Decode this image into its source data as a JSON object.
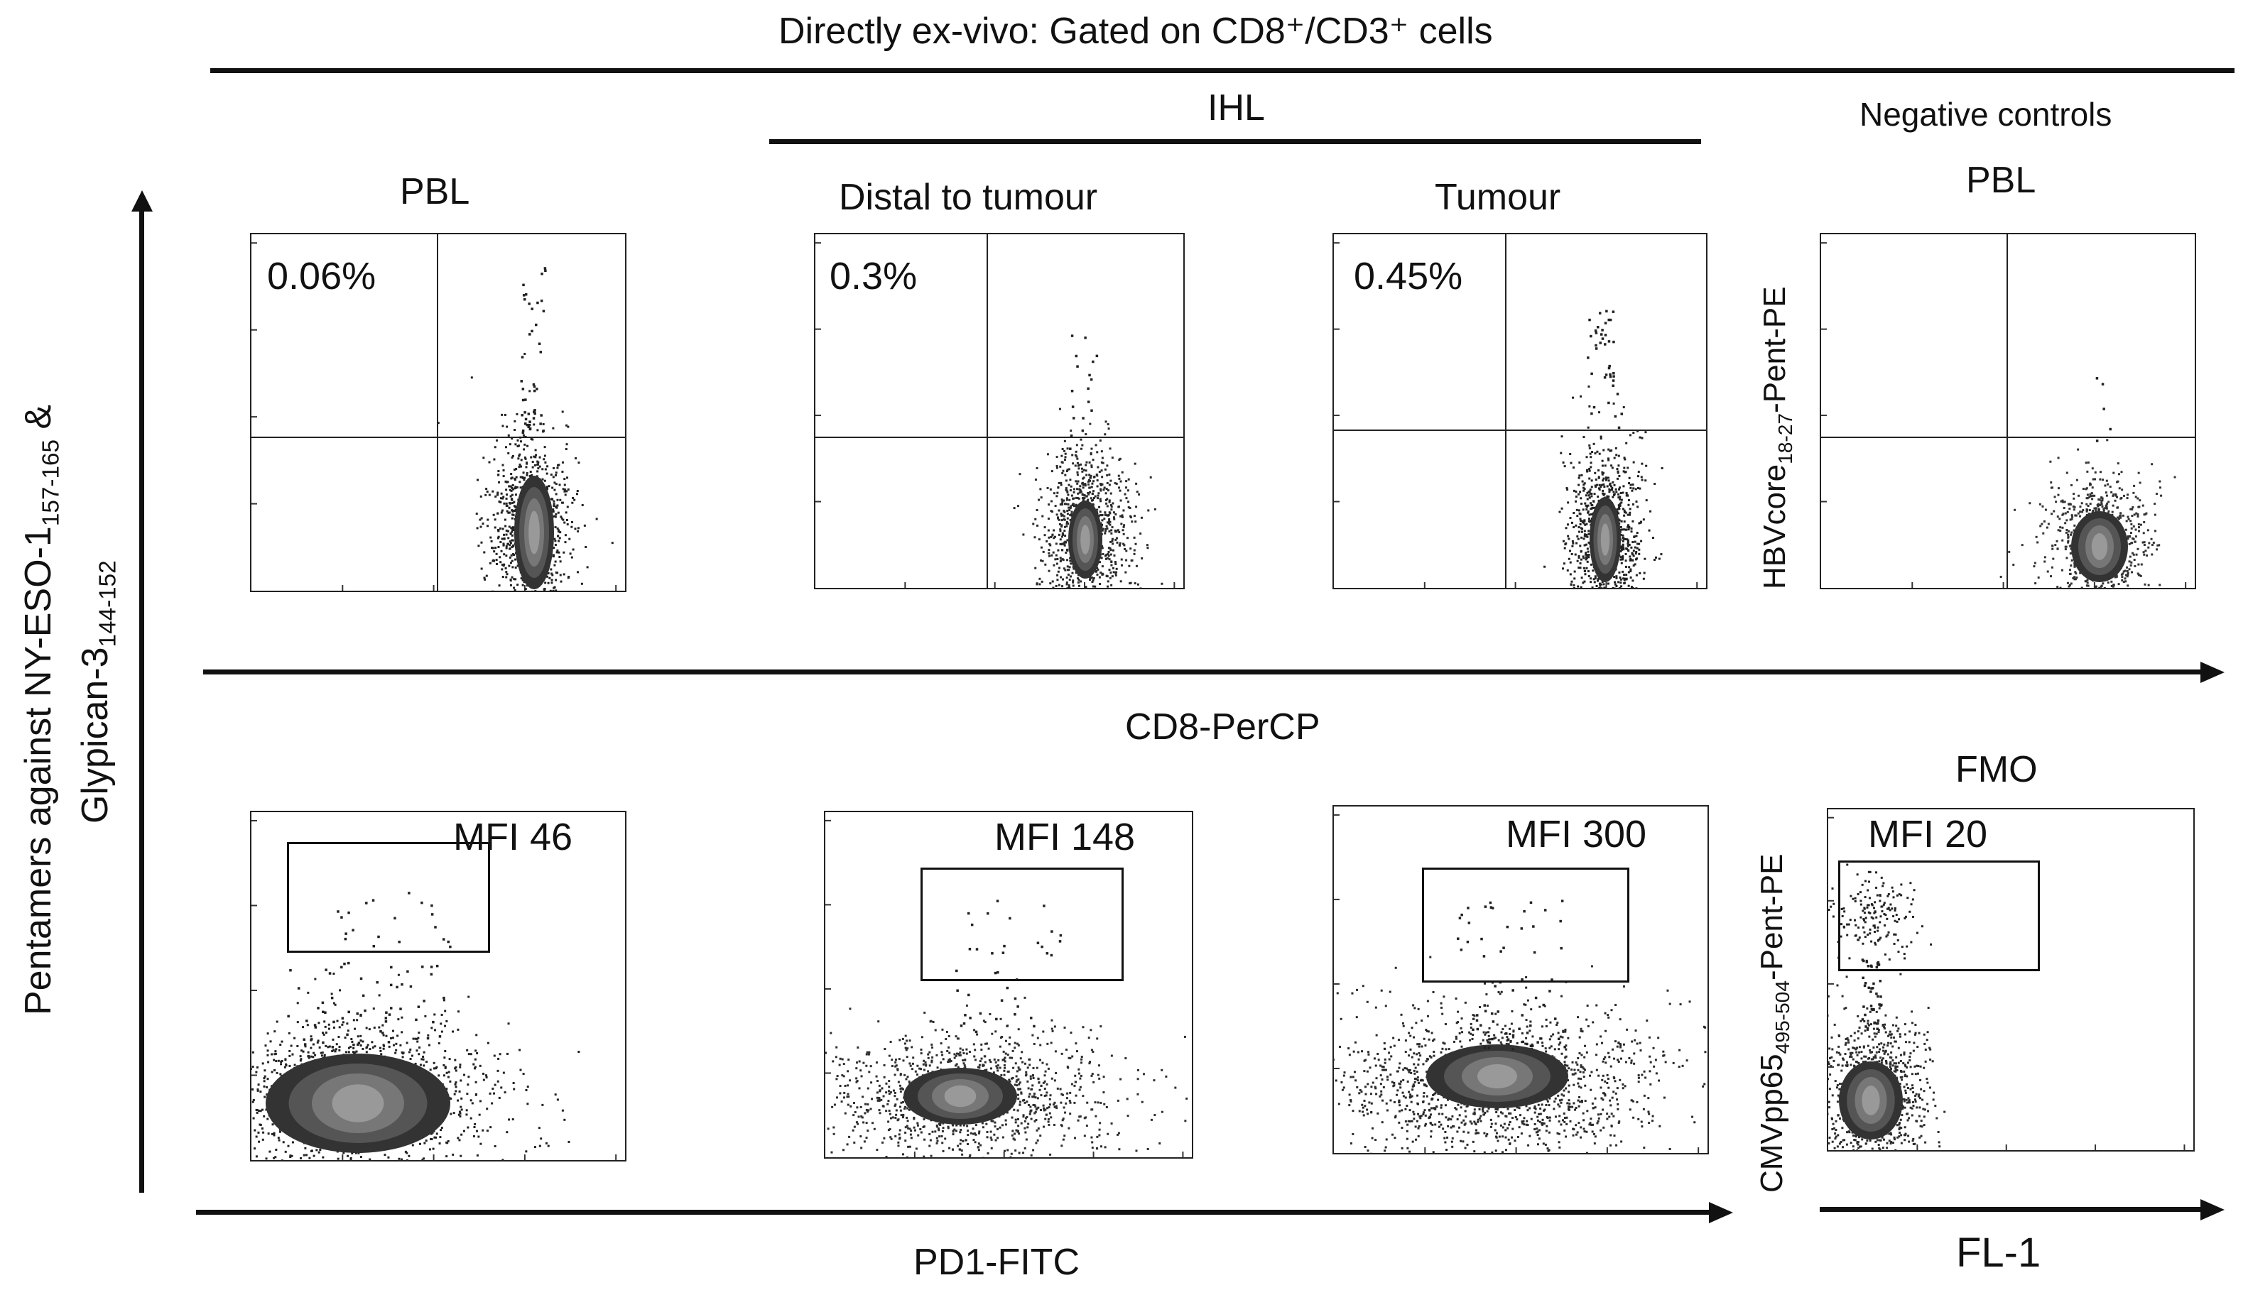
{
  "header": {
    "title": "Directly ex-vivo:  Gated on CD8⁺/CD3⁺ cells",
    "ihl": "IHL",
    "negative_controls": "Negative controls"
  },
  "y_axis_label": {
    "line1": "Pentamers against NY-ESO-1",
    "line1_sub": "157-165",
    "line1_tail": " &",
    "line2": "Glypican-3",
    "line2_sub": "144-152"
  },
  "top_row": {
    "x_axis_label": "CD8-PerCP",
    "neg_y_label": "HBVcore",
    "neg_y_sub": "18-27",
    "neg_y_tail": "-Pent-PE"
  },
  "bottom_row": {
    "x_axis_label": "PD1-FITC",
    "neg_x_label": "FL-1",
    "neg_y_label": "CMVpp65",
    "neg_y_sub": "495-504",
    "neg_y_tail": "-Pent-PE",
    "neg_title": "FMO"
  },
  "chart_data": [
    {
      "type": "scatter",
      "title": "PBL",
      "annotation": "0.06%",
      "xlabel": "CD8-PerCP",
      "row": "top",
      "panel": 1
    },
    {
      "type": "scatter",
      "title": "Distal to tumour",
      "annotation": "0.3%",
      "xlabel": "CD8-PerCP",
      "row": "top",
      "panel": 2
    },
    {
      "type": "scatter",
      "title": "Tumour",
      "annotation": "0.45%",
      "xlabel": "CD8-PerCP",
      "row": "top",
      "panel": 3
    },
    {
      "type": "scatter",
      "title": "PBL",
      "annotation": "",
      "xlabel": "CD8-PerCP",
      "row": "top",
      "panel": 4
    },
    {
      "type": "scatter",
      "title": "",
      "annotation": "MFI 46",
      "xlabel": "PD1-FITC",
      "row": "bottom",
      "panel": 1
    },
    {
      "type": "scatter",
      "title": "",
      "annotation": "MFI 148",
      "xlabel": "PD1-FITC",
      "row": "bottom",
      "panel": 2
    },
    {
      "type": "scatter",
      "title": "",
      "annotation": "MFI 300",
      "xlabel": "PD1-FITC",
      "row": "bottom",
      "panel": 3
    },
    {
      "type": "scatter",
      "title": "FMO",
      "annotation": "MFI 20",
      "xlabel": "FL-1",
      "row": "bottom",
      "panel": 4
    }
  ]
}
